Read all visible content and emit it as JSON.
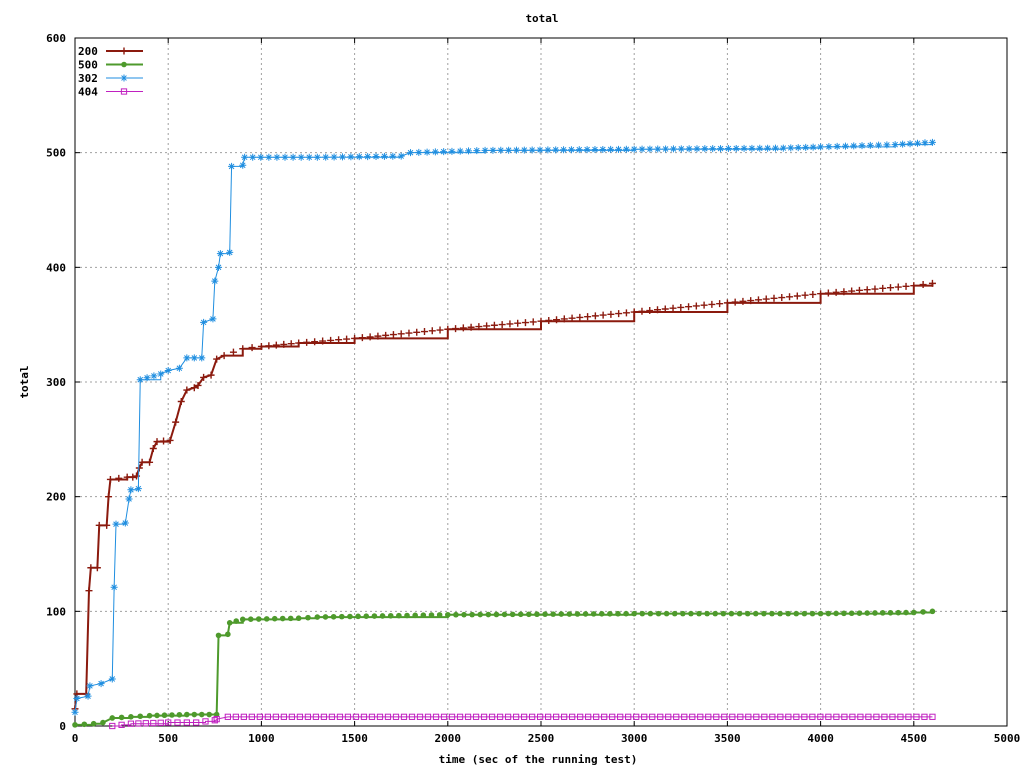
{
  "chart_data": {
    "type": "line",
    "title": "total",
    "xlabel": "time (sec of the running test)",
    "ylabel": "total",
    "xlim": [
      0,
      5000
    ],
    "ylim": [
      0,
      600
    ],
    "x_ticks": [
      "0",
      "500",
      "1000",
      "1500",
      "2000",
      "2500",
      "3000",
      "3500",
      "4000",
      "4500",
      "5000"
    ],
    "y_ticks": [
      "0",
      "100",
      "200",
      "300",
      "400",
      "500",
      "600"
    ],
    "grid": true,
    "legend_position": "top-left",
    "series": [
      {
        "name": "200",
        "color": "#8b1a0e",
        "marker": "plus",
        "points": [
          [
            0,
            15
          ],
          [
            10,
            28
          ],
          [
            60,
            28
          ],
          [
            75,
            118
          ],
          [
            85,
            138
          ],
          [
            120,
            138
          ],
          [
            130,
            175
          ],
          [
            170,
            175
          ],
          [
            180,
            200
          ],
          [
            190,
            215
          ],
          [
            280,
            217
          ],
          [
            310,
            217
          ],
          [
            330,
            218
          ],
          [
            345,
            225
          ],
          [
            360,
            230
          ],
          [
            400,
            230
          ],
          [
            420,
            242
          ],
          [
            440,
            248
          ],
          [
            510,
            249
          ],
          [
            540,
            265
          ],
          [
            570,
            283
          ],
          [
            600,
            293
          ],
          [
            640,
            295
          ],
          [
            660,
            297
          ],
          [
            690,
            304
          ],
          [
            730,
            306
          ],
          [
            760,
            320
          ],
          [
            800,
            323
          ],
          [
            900,
            329
          ],
          [
            1000,
            331
          ],
          [
            1200,
            334
          ],
          [
            1500,
            338
          ],
          [
            2000,
            346
          ],
          [
            2500,
            353
          ],
          [
            3000,
            361
          ],
          [
            3500,
            369
          ],
          [
            4000,
            377
          ],
          [
            4500,
            384
          ],
          [
            4600,
            386
          ]
        ]
      },
      {
        "name": "500",
        "color": "#4e9a2c",
        "marker": "dot",
        "points": [
          [
            0,
            1
          ],
          [
            100,
            2
          ],
          [
            150,
            3
          ],
          [
            200,
            7
          ],
          [
            300,
            8
          ],
          [
            400,
            9
          ],
          [
            600,
            10
          ],
          [
            760,
            10
          ],
          [
            770,
            79
          ],
          [
            820,
            80
          ],
          [
            830,
            90
          ],
          [
            900,
            93
          ],
          [
            1200,
            94
          ],
          [
            1300,
            95
          ],
          [
            2000,
            97
          ],
          [
            3000,
            98
          ],
          [
            4000,
            98
          ],
          [
            4500,
            99
          ],
          [
            4600,
            100
          ]
        ]
      },
      {
        "name": "302",
        "color": "#1f8ee0",
        "marker": "star",
        "points": [
          [
            0,
            12
          ],
          [
            10,
            24
          ],
          [
            70,
            26
          ],
          [
            80,
            35
          ],
          [
            140,
            37
          ],
          [
            200,
            41
          ],
          [
            210,
            121
          ],
          [
            220,
            176
          ],
          [
            270,
            177
          ],
          [
            290,
            198
          ],
          [
            300,
            206
          ],
          [
            340,
            207
          ],
          [
            350,
            302
          ],
          [
            460,
            307
          ],
          [
            500,
            310
          ],
          [
            560,
            312
          ],
          [
            600,
            321
          ],
          [
            680,
            321
          ],
          [
            690,
            352
          ],
          [
            740,
            355
          ],
          [
            750,
            388
          ],
          [
            770,
            400
          ],
          [
            780,
            412
          ],
          [
            830,
            413
          ],
          [
            840,
            488
          ],
          [
            900,
            489
          ],
          [
            910,
            496
          ],
          [
            1300,
            496
          ],
          [
            1750,
            497
          ],
          [
            1800,
            500
          ],
          [
            2200,
            502
          ],
          [
            3000,
            503
          ],
          [
            3800,
            504
          ],
          [
            4000,
            505
          ],
          [
            4400,
            507
          ],
          [
            4600,
            509
          ]
        ]
      },
      {
        "name": "404",
        "color": "#c020c0",
        "marker": "square",
        "points": [
          [
            200,
            0
          ],
          [
            250,
            1
          ],
          [
            300,
            2
          ],
          [
            500,
            3
          ],
          [
            650,
            3
          ],
          [
            700,
            4
          ],
          [
            750,
            5
          ],
          [
            760,
            6
          ],
          [
            820,
            8
          ],
          [
            4600,
            8
          ]
        ]
      }
    ]
  }
}
